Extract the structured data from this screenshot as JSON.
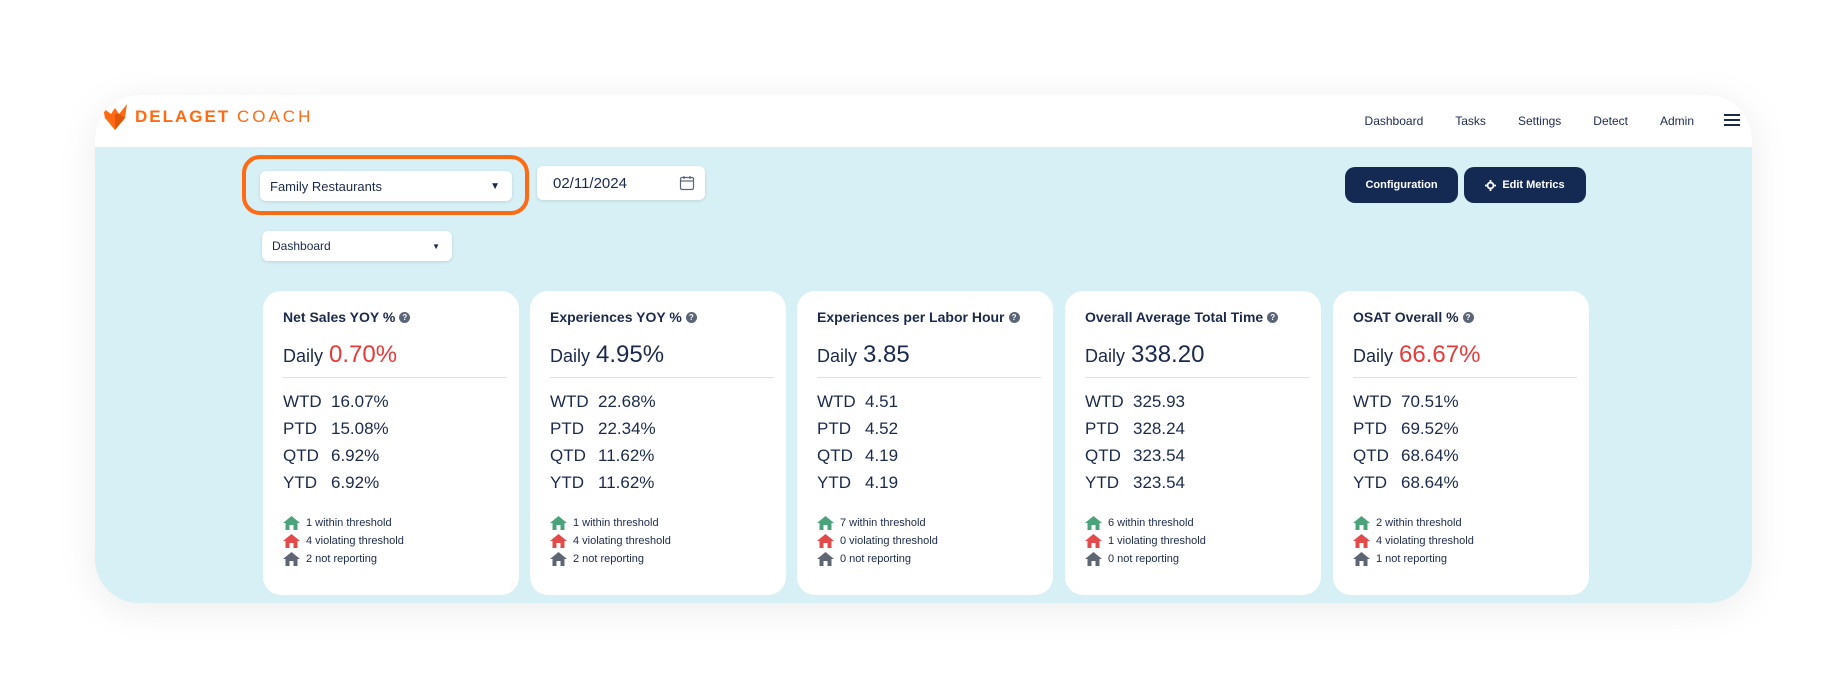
{
  "brand": {
    "name_bold": "DELAGET",
    "name_light": "COACH"
  },
  "nav": {
    "items": [
      "Dashboard",
      "Tasks",
      "Settings",
      "Detect",
      "Admin"
    ],
    "menu_icon": "hamburger-icon"
  },
  "filters": {
    "group_select": "Family Restaurants",
    "date_value": "02/11/2024",
    "view_select": "Dashboard"
  },
  "buttons": {
    "configuration": "Configuration",
    "edit_metrics": "Edit Metrics",
    "edit_metrics_icon": "gear-icon"
  },
  "colors": {
    "accent": "#ff6a13",
    "navy": "#142a52",
    "bad": "#e53b3b",
    "within": "#4aa37a",
    "violating": "#e34b4b",
    "not_reporting": "#5f6673"
  },
  "cards": [
    {
      "title": "Net Sales YOY %",
      "daily_label": "Daily",
      "daily_value": "0.70%",
      "daily_bad": true,
      "periods": [
        {
          "k": "WTD",
          "v": "16.07%"
        },
        {
          "k": "PTD",
          "v": "15.08%"
        },
        {
          "k": "QTD",
          "v": "6.92%"
        },
        {
          "k": "YTD",
          "v": "6.92%"
        }
      ],
      "status": [
        "1 within threshold",
        "4 violating threshold",
        "2 not reporting"
      ]
    },
    {
      "title": "Experiences YOY %",
      "daily_label": "Daily",
      "daily_value": "4.95%",
      "daily_bad": false,
      "periods": [
        {
          "k": "WTD",
          "v": "22.68%"
        },
        {
          "k": "PTD",
          "v": "22.34%"
        },
        {
          "k": "QTD",
          "v": "11.62%"
        },
        {
          "k": "YTD",
          "v": "11.62%"
        }
      ],
      "status": [
        "1 within threshold",
        "4 violating threshold",
        "2 not reporting"
      ]
    },
    {
      "title": "Experiences per Labor Hour",
      "daily_label": "Daily",
      "daily_value": "3.85",
      "daily_bad": false,
      "periods": [
        {
          "k": "WTD",
          "v": "4.51"
        },
        {
          "k": "PTD",
          "v": "4.52"
        },
        {
          "k": "QTD",
          "v": "4.19"
        },
        {
          "k": "YTD",
          "v": "4.19"
        }
      ],
      "status": [
        "7 within threshold",
        "0 violating threshold",
        "0 not reporting"
      ]
    },
    {
      "title": "Overall Average Total Time",
      "daily_label": "Daily",
      "daily_value": "338.20",
      "daily_bad": false,
      "periods": [
        {
          "k": "WTD",
          "v": "325.93"
        },
        {
          "k": "PTD",
          "v": "328.24"
        },
        {
          "k": "QTD",
          "v": "323.54"
        },
        {
          "k": "YTD",
          "v": "323.54"
        }
      ],
      "status": [
        "6 within threshold",
        "1 violating threshold",
        "0 not reporting"
      ]
    },
    {
      "title": "OSAT Overall %",
      "daily_label": "Daily",
      "daily_value": "66.67%",
      "daily_bad": true,
      "periods": [
        {
          "k": "WTD",
          "v": "70.51%"
        },
        {
          "k": "PTD",
          "v": "69.52%"
        },
        {
          "k": "QTD",
          "v": "68.64%"
        },
        {
          "k": "YTD",
          "v": "68.64%"
        }
      ],
      "status": [
        "2 within threshold",
        "4 violating threshold",
        "1 not reporting"
      ]
    }
  ]
}
